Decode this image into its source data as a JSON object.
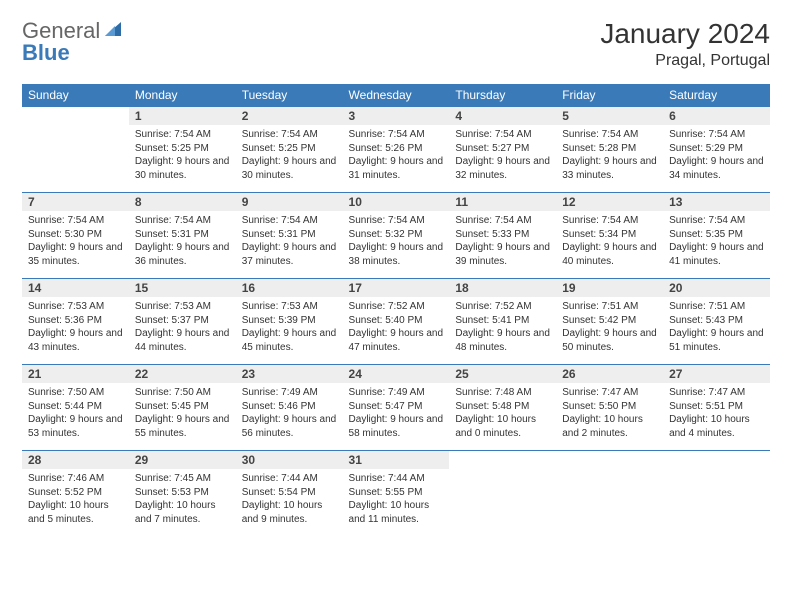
{
  "brand": {
    "part1": "General",
    "part2": "Blue"
  },
  "title": "January 2024",
  "location": "Pragal, Portugal",
  "colors": {
    "header_bg": "#3a7ab8",
    "header_text": "#ffffff",
    "daynum_bg": "#eeeeee",
    "border": "#3a7ab8",
    "text": "#333333",
    "logo_gray": "#666666",
    "logo_blue": "#3a7ab8",
    "background": "#ffffff"
  },
  "weekdays": [
    "Sunday",
    "Monday",
    "Tuesday",
    "Wednesday",
    "Thursday",
    "Friday",
    "Saturday"
  ],
  "grid": {
    "start_offset": 1,
    "days": [
      {
        "n": 1,
        "sr": "7:54 AM",
        "ss": "5:25 PM",
        "dl": "9 hours and 30 minutes."
      },
      {
        "n": 2,
        "sr": "7:54 AM",
        "ss": "5:25 PM",
        "dl": "9 hours and 30 minutes."
      },
      {
        "n": 3,
        "sr": "7:54 AM",
        "ss": "5:26 PM",
        "dl": "9 hours and 31 minutes."
      },
      {
        "n": 4,
        "sr": "7:54 AM",
        "ss": "5:27 PM",
        "dl": "9 hours and 32 minutes."
      },
      {
        "n": 5,
        "sr": "7:54 AM",
        "ss": "5:28 PM",
        "dl": "9 hours and 33 minutes."
      },
      {
        "n": 6,
        "sr": "7:54 AM",
        "ss": "5:29 PM",
        "dl": "9 hours and 34 minutes."
      },
      {
        "n": 7,
        "sr": "7:54 AM",
        "ss": "5:30 PM",
        "dl": "9 hours and 35 minutes."
      },
      {
        "n": 8,
        "sr": "7:54 AM",
        "ss": "5:31 PM",
        "dl": "9 hours and 36 minutes."
      },
      {
        "n": 9,
        "sr": "7:54 AM",
        "ss": "5:31 PM",
        "dl": "9 hours and 37 minutes."
      },
      {
        "n": 10,
        "sr": "7:54 AM",
        "ss": "5:32 PM",
        "dl": "9 hours and 38 minutes."
      },
      {
        "n": 11,
        "sr": "7:54 AM",
        "ss": "5:33 PM",
        "dl": "9 hours and 39 minutes."
      },
      {
        "n": 12,
        "sr": "7:54 AM",
        "ss": "5:34 PM",
        "dl": "9 hours and 40 minutes."
      },
      {
        "n": 13,
        "sr": "7:54 AM",
        "ss": "5:35 PM",
        "dl": "9 hours and 41 minutes."
      },
      {
        "n": 14,
        "sr": "7:53 AM",
        "ss": "5:36 PM",
        "dl": "9 hours and 43 minutes."
      },
      {
        "n": 15,
        "sr": "7:53 AM",
        "ss": "5:37 PM",
        "dl": "9 hours and 44 minutes."
      },
      {
        "n": 16,
        "sr": "7:53 AM",
        "ss": "5:39 PM",
        "dl": "9 hours and 45 minutes."
      },
      {
        "n": 17,
        "sr": "7:52 AM",
        "ss": "5:40 PM",
        "dl": "9 hours and 47 minutes."
      },
      {
        "n": 18,
        "sr": "7:52 AM",
        "ss": "5:41 PM",
        "dl": "9 hours and 48 minutes."
      },
      {
        "n": 19,
        "sr": "7:51 AM",
        "ss": "5:42 PM",
        "dl": "9 hours and 50 minutes."
      },
      {
        "n": 20,
        "sr": "7:51 AM",
        "ss": "5:43 PM",
        "dl": "9 hours and 51 minutes."
      },
      {
        "n": 21,
        "sr": "7:50 AM",
        "ss": "5:44 PM",
        "dl": "9 hours and 53 minutes."
      },
      {
        "n": 22,
        "sr": "7:50 AM",
        "ss": "5:45 PM",
        "dl": "9 hours and 55 minutes."
      },
      {
        "n": 23,
        "sr": "7:49 AM",
        "ss": "5:46 PM",
        "dl": "9 hours and 56 minutes."
      },
      {
        "n": 24,
        "sr": "7:49 AM",
        "ss": "5:47 PM",
        "dl": "9 hours and 58 minutes."
      },
      {
        "n": 25,
        "sr": "7:48 AM",
        "ss": "5:48 PM",
        "dl": "10 hours and 0 minutes."
      },
      {
        "n": 26,
        "sr": "7:47 AM",
        "ss": "5:50 PM",
        "dl": "10 hours and 2 minutes."
      },
      {
        "n": 27,
        "sr": "7:47 AM",
        "ss": "5:51 PM",
        "dl": "10 hours and 4 minutes."
      },
      {
        "n": 28,
        "sr": "7:46 AM",
        "ss": "5:52 PM",
        "dl": "10 hours and 5 minutes."
      },
      {
        "n": 29,
        "sr": "7:45 AM",
        "ss": "5:53 PM",
        "dl": "10 hours and 7 minutes."
      },
      {
        "n": 30,
        "sr": "7:44 AM",
        "ss": "5:54 PM",
        "dl": "10 hours and 9 minutes."
      },
      {
        "n": 31,
        "sr": "7:44 AM",
        "ss": "5:55 PM",
        "dl": "10 hours and 11 minutes."
      }
    ]
  },
  "labels": {
    "sunrise": "Sunrise:",
    "sunset": "Sunset:",
    "daylight": "Daylight:"
  }
}
